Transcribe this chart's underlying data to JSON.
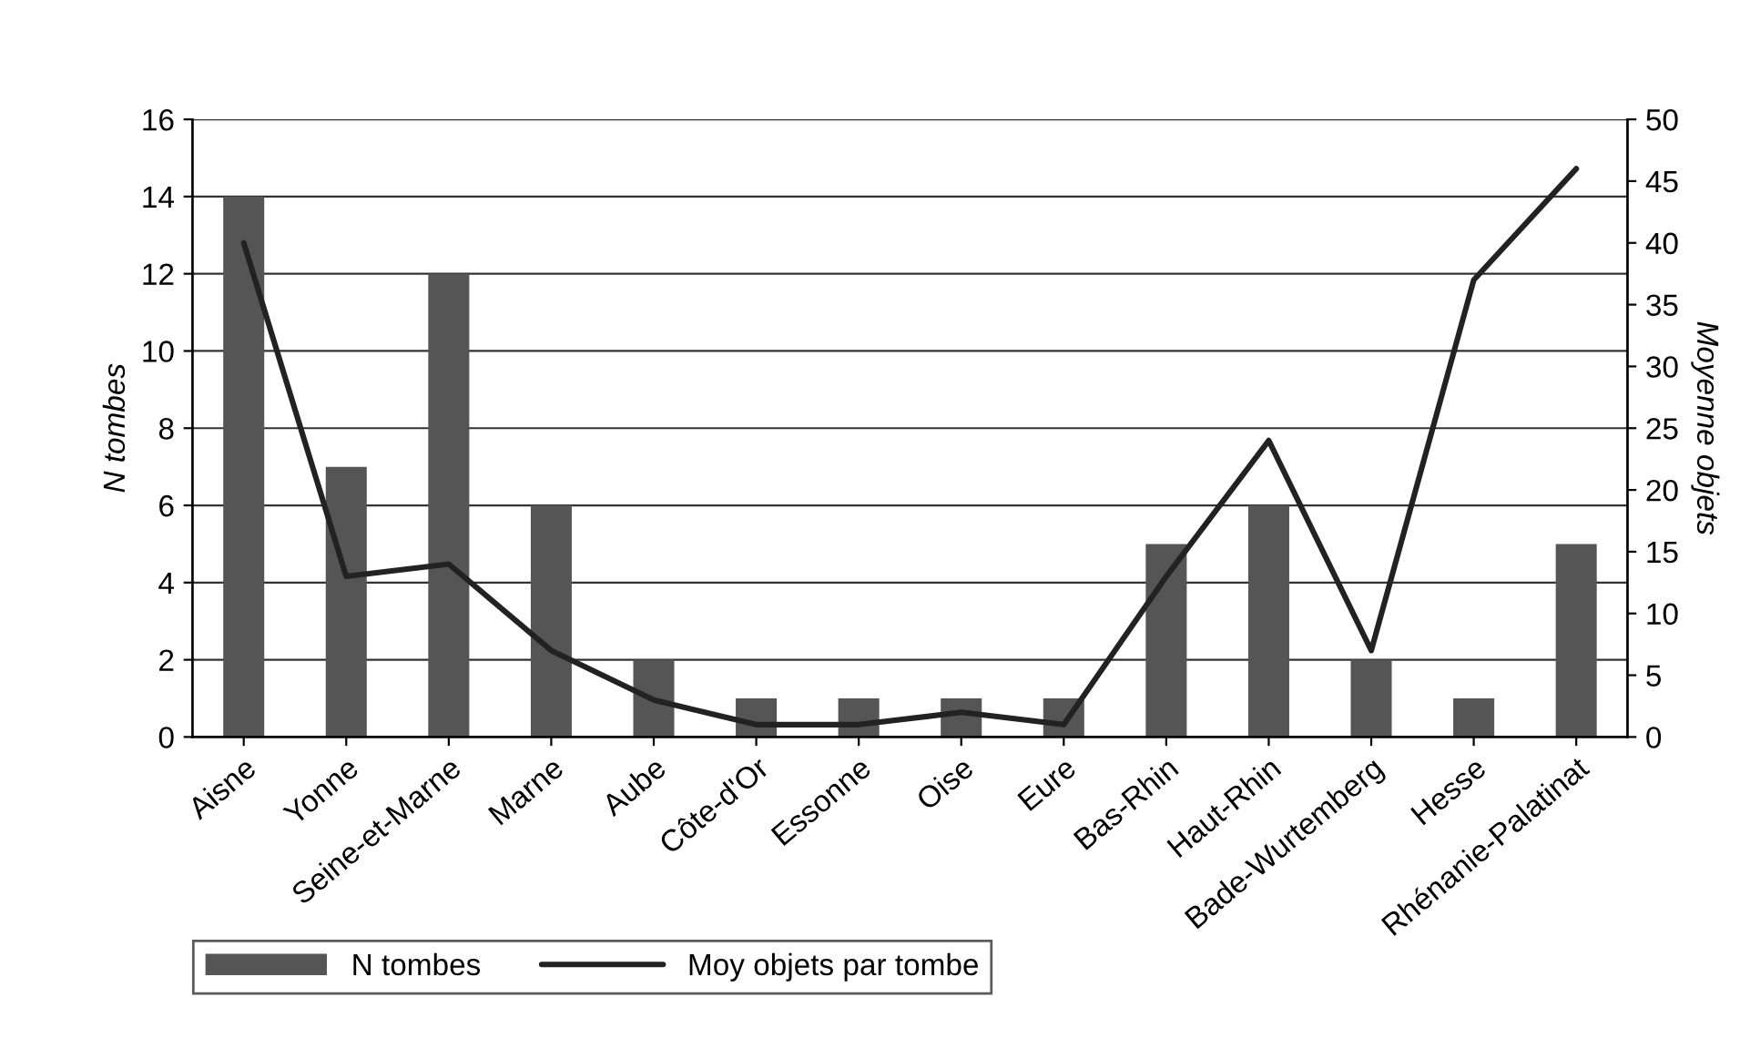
{
  "chart_data": {
    "type": "bar",
    "categories": [
      "Aisne",
      "Yonne",
      "Seine-et-Marne",
      "Marne",
      "Aube",
      "Côte-d'Or",
      "Essonne",
      "Oise",
      "Eure",
      "Bas-Rhin",
      "Haut-Rhin",
      "Bade-Wurtemberg",
      "Hesse",
      "Rhénanie-Palatinat"
    ],
    "series": [
      {
        "name": "N tombes",
        "color": "#555555",
        "values": [
          14,
          7,
          12,
          6,
          2,
          1,
          1,
          1,
          1,
          5,
          6,
          2,
          1,
          5
        ]
      },
      {
        "name": "Moy objets par tombe",
        "type": "line",
        "axis": "y2",
        "color": "#222222",
        "values": [
          40,
          13,
          14,
          7,
          3,
          1,
          1,
          2,
          1,
          13,
          24,
          7,
          37,
          46
        ]
      }
    ],
    "ylabel": "N tombes",
    "y2label": "Moyenne objets",
    "ylim": [
      0,
      16
    ],
    "yticks": [
      0,
      2,
      4,
      6,
      8,
      10,
      12,
      14,
      16
    ],
    "y2lim": [
      0,
      50
    ],
    "y2ticks": [
      0,
      5,
      10,
      15,
      20,
      25,
      30,
      35,
      40,
      45,
      50
    ],
    "grid": "y",
    "legend": "bottom left",
    "marker": "none",
    "line_style": "solid"
  }
}
